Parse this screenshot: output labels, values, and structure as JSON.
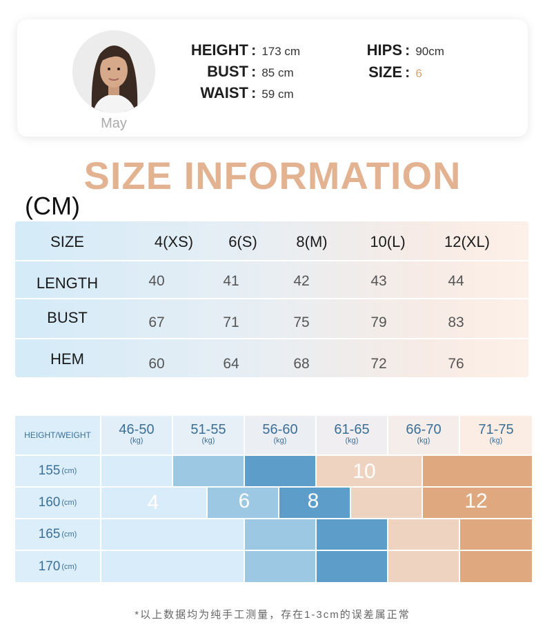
{
  "model": {
    "name": "May",
    "height_label": "HEIGHT",
    "height_value": "173 cm",
    "bust_label": "BUST",
    "bust_value": "85 cm",
    "waist_label": "WAIST",
    "waist_value": "59 cm",
    "hips_label": "HIPS",
    "hips_value": "90cm",
    "size_label": "SIZE",
    "size_value": "6",
    "separator": ":"
  },
  "title": "SIZE INFORMATION",
  "unit": "(CM)",
  "size_table": {
    "header": [
      "SIZE",
      "4(XS)",
      "6(S)",
      "8(M)",
      "10(L)",
      "12(XL)"
    ],
    "rows": [
      {
        "label": "LENGTH",
        "values": [
          "40",
          "41",
          "42",
          "43",
          "44"
        ]
      },
      {
        "label": "BUST",
        "values": [
          "67",
          "71",
          "75",
          "79",
          "83"
        ]
      },
      {
        "label": "HEM",
        "values": [
          "60",
          "64",
          "68",
          "72",
          "76"
        ]
      }
    ]
  },
  "grid": {
    "title": "HEIGHT/WEIGHT",
    "weights": [
      "46-50",
      "51-55",
      "56-60",
      "61-65",
      "66-70",
      "71-75"
    ],
    "weight_unit": "(kg)",
    "heights": [
      "155",
      "160",
      "165",
      "170"
    ],
    "height_unit": "(cm)",
    "size_labels": {
      "s4": "4",
      "s6": "6",
      "s8": "8",
      "s10": "10",
      "s12": "12"
    },
    "colors": {
      "size_4": "#d9ecf9",
      "size_6": "#9cc8e4",
      "size_8": "#5c9ec9",
      "size_10": "#efd3c1",
      "size_12": "#dfa87f"
    }
  },
  "note": "*以上数据均为纯手工测量，存在1-3cm的误差属正常",
  "colors": {
    "title": "#e3b290",
    "accent": "#d4a373",
    "grid_text": "#3a6f98"
  }
}
